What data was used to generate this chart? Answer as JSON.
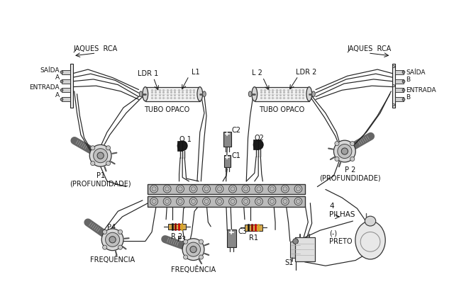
{
  "bg_color": "#ffffff",
  "fig_width": 6.4,
  "fig_height": 4.32,
  "dpi": 100,
  "lc": "#1a1a1a",
  "labels": {
    "jaques_rca_left": "JAQUES  RCA",
    "jaques_rca_right": "JAQUES  RCA",
    "saida_a": "SAÍDA A",
    "entrada_a": "ENTRADA\nA",
    "saida_b": "SAÍDA\nB",
    "entrada_b": "ENTRADA\nB",
    "ldr1": "LDR 1",
    "l1": "L1",
    "l2": "L 2",
    "ldr2": "LDR 2",
    "tubo_opaco_left": "TUBO OPACO",
    "tubo_opaco_right": "TUBO OPACO",
    "q1": "Q 1",
    "q2": "Q2",
    "c2": "C2",
    "c1": "C1",
    "c3": "C3",
    "r1": "R1",
    "r2": "R 2",
    "p1": "P1\n(PROFUNDIDADE)",
    "p2": "P 2\n(PROFUNDIDADE)",
    "p3": "P3",
    "p4": "P4",
    "freq_left": "FREQUÊNCIA",
    "freq_right": "FREQUÊNCIA",
    "pilhas": "4\nPILHAS",
    "preto": "(-)\nPRETO",
    "s1": "S1"
  }
}
